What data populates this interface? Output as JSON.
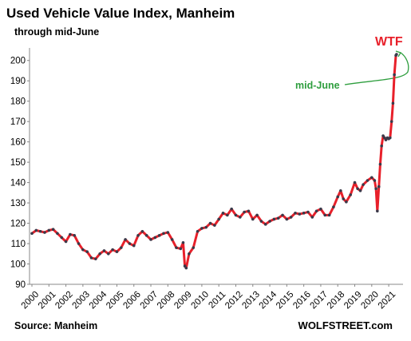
{
  "chart_data": {
    "type": "line",
    "title": "Used Vehicle Value Index, Manheim",
    "subtitle": "through mid-June",
    "source": "Source: Manheim",
    "credit": "WOLFSTREET.com",
    "annotations": [
      "WTF",
      "mid-June"
    ],
    "x": [
      2000.0,
      2000.25,
      2000.5,
      2000.75,
      2001.0,
      2001.25,
      2001.5,
      2001.75,
      2002.0,
      2002.25,
      2002.5,
      2002.75,
      2003.0,
      2003.25,
      2003.5,
      2003.75,
      2004.0,
      2004.25,
      2004.5,
      2004.75,
      2005.0,
      2005.25,
      2005.5,
      2005.75,
      2006.0,
      2006.25,
      2006.5,
      2006.75,
      2007.0,
      2007.25,
      2007.5,
      2007.75,
      2008.0,
      2008.25,
      2008.5,
      2008.75,
      2008.9,
      2009.0,
      2009.08,
      2009.25,
      2009.5,
      2009.75,
      2010.0,
      2010.25,
      2010.5,
      2010.75,
      2011.0,
      2011.25,
      2011.5,
      2011.75,
      2012.0,
      2012.25,
      2012.5,
      2012.75,
      2013.0,
      2013.25,
      2013.5,
      2013.75,
      2014.0,
      2014.25,
      2014.5,
      2014.75,
      2015.0,
      2015.25,
      2015.5,
      2015.75,
      2016.0,
      2016.25,
      2016.5,
      2016.75,
      2017.0,
      2017.25,
      2017.5,
      2017.75,
      2018.0,
      2018.17,
      2018.33,
      2018.5,
      2018.75,
      2019.0,
      2019.17,
      2019.33,
      2019.5,
      2019.75,
      2020.0,
      2020.17,
      2020.25,
      2020.33,
      2020.42,
      2020.5,
      2020.58,
      2020.67,
      2020.75,
      2020.83,
      2020.92,
      2021.0,
      2021.08,
      2021.17,
      2021.25,
      2021.33,
      2021.42,
      2021.46
    ],
    "y": [
      115,
      116.5,
      116,
      115.5,
      116.5,
      117,
      115,
      113,
      111,
      114.5,
      114,
      110,
      107,
      106,
      103,
      102.5,
      105,
      106.5,
      105,
      107,
      106,
      108,
      112,
      110,
      109,
      114,
      116,
      114,
      112,
      113,
      114,
      115,
      115.5,
      112,
      108,
      107.5,
      110.5,
      99,
      98,
      105,
      108,
      116,
      117.5,
      118,
      120,
      119,
      122,
      125,
      124,
      127,
      124,
      123,
      125.5,
      126,
      122,
      124,
      121,
      119.5,
      121,
      122,
      122.5,
      124,
      122,
      123,
      125,
      124.5,
      125,
      125.5,
      123,
      126,
      127,
      124,
      124,
      128,
      133,
      136,
      132,
      130.5,
      134,
      140,
      137,
      136,
      139,
      141,
      142.5,
      141,
      137,
      126,
      138,
      149,
      158,
      163,
      162,
      161,
      162,
      161.5,
      162,
      170,
      179,
      193,
      202.5,
      203
    ],
    "color": "#e8202a",
    "marker_color": "#3a3a4a",
    "xlim": [
      2000,
      2021.7
    ],
    "ylim": [
      90,
      205
    ],
    "xticks": [
      2000,
      2001,
      2002,
      2003,
      2004,
      2005,
      2006,
      2007,
      2008,
      2009,
      2010,
      2011,
      2012,
      2013,
      2014,
      2015,
      2016,
      2017,
      2018,
      2019,
      2020,
      2021
    ],
    "yticks": [
      90,
      100,
      110,
      120,
      130,
      140,
      150,
      160,
      170,
      180,
      190,
      200
    ],
    "grid": false
  }
}
